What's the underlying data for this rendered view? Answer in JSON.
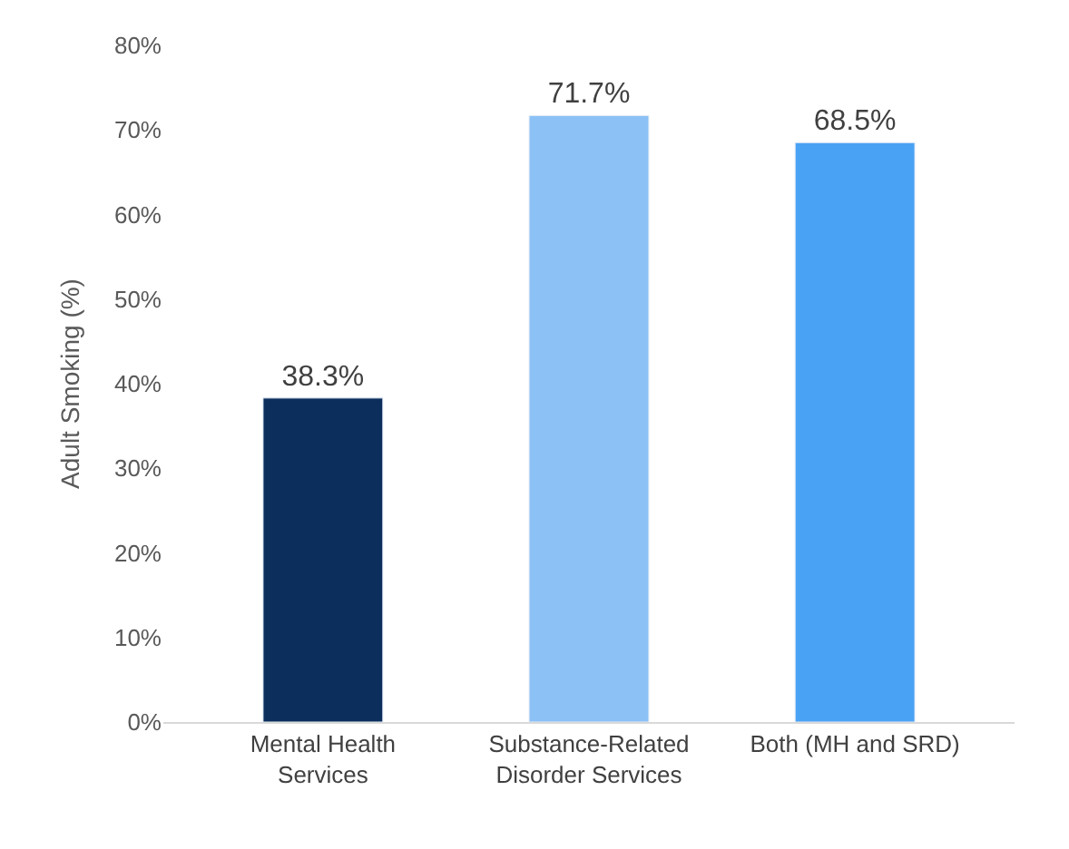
{
  "chart_data": {
    "type": "bar",
    "ylabel": "Adult Smoking (%)",
    "categories": [
      "Mental Health Services",
      "Substance-Related Disorder Services",
      "Both (MH and SRD)"
    ],
    "values": [
      38.3,
      71.7,
      68.5
    ],
    "value_labels": [
      "38.3%",
      "71.7%",
      "68.5%"
    ],
    "colors": [
      "#0b2e5c",
      "#8cc1f5",
      "#4aa2f4"
    ],
    "ylim": [
      0,
      80
    ],
    "yticks": [
      {
        "value": 0,
        "label": "0%"
      },
      {
        "value": 10,
        "label": "10%"
      },
      {
        "value": 20,
        "label": "20%"
      },
      {
        "value": 30,
        "label": "30%"
      },
      {
        "value": 40,
        "label": "40%"
      },
      {
        "value": 50,
        "label": "50%"
      },
      {
        "value": 60,
        "label": "60%"
      },
      {
        "value": 70,
        "label": "70%"
      },
      {
        "value": 80,
        "label": "80%"
      }
    ],
    "grid": false,
    "legend": false
  }
}
